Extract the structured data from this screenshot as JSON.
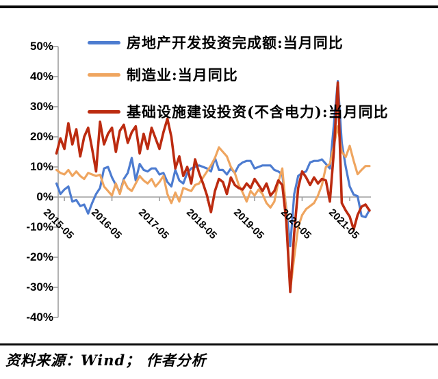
{
  "source_note": "资料来源：Wind；  作者分析",
  "colors": {
    "real_estate": "#4D7CD0",
    "manufacturing": "#EFA55F",
    "infrastructure": "#BC2B10",
    "axis": "#9E9E9E",
    "rule": "#0A0A0A"
  },
  "chart_data": {
    "type": "line",
    "title": "",
    "xlabel": "",
    "ylabel": "",
    "ylim": [
      -40,
      50
    ],
    "grid": false,
    "legend_position": "top-left-inside",
    "ytick_labels": [
      "50%",
      "40%",
      "30%",
      "20%",
      "10%",
      "0%",
      "-10%",
      "-20%",
      "-30%",
      "-40%"
    ],
    "ytick_values": [
      50,
      40,
      30,
      20,
      10,
      0,
      -10,
      -20,
      -30,
      -40
    ],
    "xticks": [
      {
        "label": "2015-05",
        "month_index": 2
      },
      {
        "label": "2016-05",
        "month_index": 14
      },
      {
        "label": "2017-05",
        "month_index": 26
      },
      {
        "label": "2018-05",
        "month_index": 38
      },
      {
        "label": "2019-05",
        "month_index": 50
      },
      {
        "label": "2020-05",
        "month_index": 62
      },
      {
        "label": "2021-05",
        "month_index": 74
      }
    ],
    "x": [
      "2015-03",
      "2015-04",
      "2015-05",
      "2015-06",
      "2015-07",
      "2015-08",
      "2015-09",
      "2015-10",
      "2015-11",
      "2015-12",
      "2016-01",
      "2016-02",
      "2016-03",
      "2016-04",
      "2016-05",
      "2016-06",
      "2016-07",
      "2016-08",
      "2016-09",
      "2016-10",
      "2016-11",
      "2016-12",
      "2017-01",
      "2017-02",
      "2017-03",
      "2017-04",
      "2017-05",
      "2017-06",
      "2017-07",
      "2017-08",
      "2017-09",
      "2017-10",
      "2017-11",
      "2017-12",
      "2018-01",
      "2018-02",
      "2018-03",
      "2018-04",
      "2018-05",
      "2018-06",
      "2018-07",
      "2018-08",
      "2018-09",
      "2018-10",
      "2018-11",
      "2018-12",
      "2019-01",
      "2019-02",
      "2019-03",
      "2019-04",
      "2019-05",
      "2019-06",
      "2019-07",
      "2019-08",
      "2019-09",
      "2019-10",
      "2019-11",
      "2019-12",
      "2020-01",
      "2020-02",
      "2020-03",
      "2020-04",
      "2020-05",
      "2020-06",
      "2020-07",
      "2020-08",
      "2020-09",
      "2020-10",
      "2020-11",
      "2020-12",
      "2021-01",
      "2021-02",
      "2021-03",
      "2021-04",
      "2021-05",
      "2021-06",
      "2021-07",
      "2021-08",
      "2021-09",
      "2021-10"
    ],
    "series": [
      {
        "name": "房地产开发投资完成额:当月同比",
        "color_key": "real_estate",
        "stroke_width": 3.2,
        "values": [
          4.5,
          1.0,
          2.5,
          3.5,
          -1.5,
          -1.0,
          -3.0,
          -2.5,
          -5.5,
          -2.0,
          1.0,
          3.0,
          9.5,
          10.0,
          6.5,
          4.0,
          1.5,
          6.0,
          8.0,
          13.0,
          5.5,
          11.0,
          9.0,
          8.5,
          9.5,
          9.5,
          7.5,
          8.0,
          5.0,
          3.5,
          9.0,
          5.5,
          4.5,
          8.0,
          9.5,
          10.0,
          10.5,
          10.0,
          9.5,
          8.5,
          13.0,
          9.0,
          9.0,
          7.5,
          9.5,
          8.0,
          10.5,
          11.5,
          12.0,
          12.0,
          9.5,
          10.0,
          10.5,
          10.5,
          10.5,
          9.0,
          8.5,
          7.5,
          -4.0,
          -16.3,
          1.0,
          7.0,
          8.0,
          8.5,
          11.5,
          12.0,
          12.0,
          12.5,
          11.0,
          9.5,
          24.0,
          38.5,
          18.0,
          10.0,
          3.5,
          0.8,
          0.3,
          -6.3,
          -6.7,
          -4.3
        ]
      },
      {
        "name": "制造业:当月同比",
        "color_key": "manufacturing",
        "stroke_width": 3.2,
        "values": [
          9.0,
          8.0,
          7.5,
          9.0,
          7.0,
          8.5,
          7.0,
          6.0,
          8.0,
          7.5,
          7.0,
          7.4,
          3.5,
          2.0,
          0.5,
          4.5,
          1.0,
          5.5,
          3.0,
          2.0,
          4.5,
          7.0,
          5.5,
          4.5,
          6.0,
          3.5,
          5.0,
          7.0,
          1.0,
          -2.0,
          1.5,
          -1.5,
          3.0,
          2.5,
          2.0,
          4.0,
          4.5,
          6.5,
          8.5,
          10.5,
          13.0,
          16.5,
          15.0,
          13.5,
          10.0,
          8.0,
          4.0,
          1.5,
          -1.5,
          2.0,
          0.5,
          2.5,
          1.0,
          -2.0,
          -3.5,
          -1.5,
          5.0,
          9.5,
          -5.0,
          -31.0,
          -20.0,
          -10.0,
          -6.0,
          -4.0,
          -3.0,
          -2.0,
          0.5,
          4.0,
          10.0,
          11.0,
          17.0,
          23.5,
          15.0,
          13.3,
          17.0,
          12.0,
          7.6,
          9.0,
          10.3,
          10.3
        ]
      },
      {
        "name": "基础设施建设投资(不含电力):当月同比",
        "color_key": "infrastructure",
        "stroke_width": 3.6,
        "values": [
          14.5,
          19.5,
          16.0,
          24.5,
          17.5,
          22.5,
          13.5,
          20.0,
          23.0,
          16.0,
          8.5,
          25.0,
          17.5,
          21.0,
          23.0,
          15.0,
          22.0,
          24.0,
          18.0,
          21.5,
          23.5,
          14.5,
          21.0,
          16.0,
          23.0,
          19.5,
          16.0,
          21.5,
          26.0,
          20.0,
          9.5,
          13.5,
          7.0,
          10.0,
          4.5,
          12.5,
          8.0,
          4.5,
          0.5,
          -5.0,
          2.0,
          6.0,
          5.0,
          1.0,
          6.5,
          4.0,
          3.0,
          2.5,
          4.5,
          3.0,
          6.0,
          4.0,
          2.0,
          4.5,
          0.5,
          2.0,
          5.5,
          4.0,
          -8.0,
          -31.5,
          -12.0,
          3.0,
          8.5,
          6.5,
          4.0,
          6.5,
          4.5,
          6.0,
          5.5,
          -1.5,
          15.0,
          38.0,
          -2.0,
          -4.5,
          -6.5,
          -10.8,
          -6.0,
          -3.2,
          -2.5,
          -4.5
        ]
      }
    ]
  }
}
